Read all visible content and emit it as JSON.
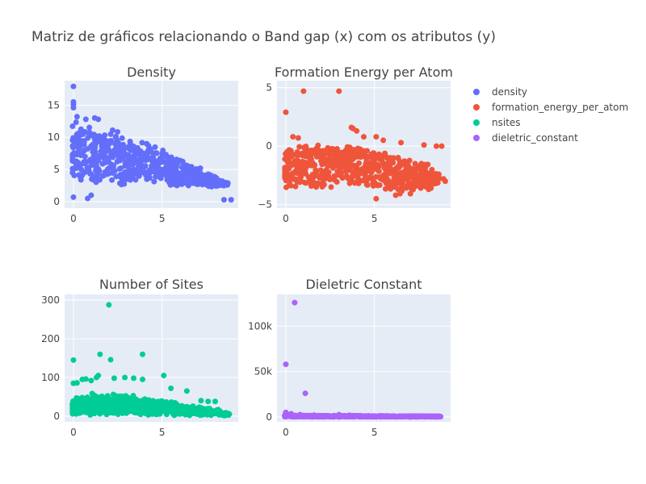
{
  "figure": {
    "title": "Matriz de gráficos relacionando o Band gap (x) com os atributos (y)",
    "plot_bg": "#e5ecf6",
    "grid_color": "#ffffff"
  },
  "legend": {
    "position": "top-right",
    "items": [
      {
        "name": "density",
        "color": "#636efa"
      },
      {
        "name": "formation_energy_per_atom",
        "color": "#ef553b"
      },
      {
        "name": "nsites",
        "color": "#00cc96"
      },
      {
        "name": "dieletric_constant",
        "color": "#ab63fa"
      }
    ]
  },
  "chart_data": [
    {
      "type": "scatter",
      "title": "Density",
      "series": [
        {
          "name": "density",
          "color": "#636efa"
        }
      ],
      "xlim": [
        -0.5,
        9.3
      ],
      "ylim": [
        -1,
        18.8
      ],
      "xticks": [
        {
          "v": 0,
          "label": "0"
        },
        {
          "v": 5,
          "label": "5"
        }
      ],
      "yticks": [
        {
          "v": 0,
          "label": "0"
        },
        {
          "v": 5,
          "label": "5"
        },
        {
          "v": 10,
          "label": "10"
        },
        {
          "v": 15,
          "label": "15"
        }
      ],
      "cloud": [
        [
          0,
          2.5,
          13.5
        ],
        [
          0.5,
          2.5,
          13
        ],
        [
          1,
          2.5,
          12.5
        ],
        [
          1.5,
          2.5,
          12
        ],
        [
          2,
          2.5,
          11.5
        ],
        [
          2.5,
          2.5,
          11
        ],
        [
          3,
          2.5,
          10.5
        ],
        [
          3.5,
          2.5,
          10
        ],
        [
          4,
          2.5,
          9.5
        ],
        [
          4.5,
          2.5,
          9
        ],
        [
          5,
          2.3,
          8.5
        ],
        [
          5.5,
          2.3,
          7.5
        ],
        [
          6,
          2.3,
          7
        ],
        [
          6.5,
          2.3,
          6
        ],
        [
          7,
          2.3,
          5.5
        ],
        [
          7.5,
          2.3,
          4.5
        ],
        [
          8,
          2.3,
          4
        ],
        [
          8.5,
          2.5,
          3
        ]
      ],
      "points": [
        [
          0,
          17.9
        ],
        [
          0,
          15.5
        ],
        [
          0,
          15.1
        ],
        [
          0,
          14.6
        ],
        [
          0,
          0.7
        ],
        [
          0.8,
          0.5
        ],
        [
          1,
          1
        ],
        [
          8.5,
          0.3
        ],
        [
          8.9,
          0.3
        ],
        [
          8.5,
          2.5
        ],
        [
          8.4,
          3.2
        ],
        [
          0.2,
          13.2
        ],
        [
          0.7,
          12.8
        ],
        [
          1.2,
          13
        ],
        [
          1.4,
          12.8
        ]
      ]
    },
    {
      "type": "scatter",
      "title": "Formation Energy per Atom",
      "series": [
        {
          "name": "formation_energy_per_atom",
          "color": "#ef553b"
        }
      ],
      "xlim": [
        -0.5,
        9.3
      ],
      "ylim": [
        -5.3,
        5.6
      ],
      "xticks": [
        {
          "v": 0,
          "label": "0"
        },
        {
          "v": 5,
          "label": "5"
        }
      ],
      "yticks": [
        {
          "v": -5,
          "label": "−5"
        },
        {
          "v": 0,
          "label": "0"
        },
        {
          "v": 5,
          "label": "5"
        }
      ],
      "cloud": [
        [
          0,
          -3.8,
          0.1
        ],
        [
          0.5,
          -3.8,
          0.2
        ],
        [
          1,
          -3.7,
          0.2
        ],
        [
          1.5,
          -3.7,
          0.2
        ],
        [
          2,
          -3.7,
          0.2
        ],
        [
          2.5,
          -3.6,
          0.2
        ],
        [
          3,
          -3.6,
          0.2
        ],
        [
          3.5,
          -3.6,
          0.1
        ],
        [
          4,
          -3.6,
          0.1
        ],
        [
          4.5,
          -3.6,
          0
        ],
        [
          5,
          -3.8,
          -0.2
        ],
        [
          5.5,
          -3.9,
          -0.3
        ],
        [
          6,
          -4.2,
          -0.5
        ],
        [
          6.5,
          -4.3,
          -0.7
        ],
        [
          7,
          -4.3,
          -0.9
        ],
        [
          7.5,
          -4,
          -1.2
        ],
        [
          8,
          -3.8,
          -1.5
        ],
        [
          8.4,
          -3.4,
          -2.2
        ]
      ],
      "points": [
        [
          0,
          2.9
        ],
        [
          1,
          4.7
        ],
        [
          3,
          4.7
        ],
        [
          0.4,
          0.8
        ],
        [
          0.7,
          0.7
        ],
        [
          3.7,
          1.6
        ],
        [
          4,
          1.3
        ],
        [
          3.8,
          1.5
        ],
        [
          4.4,
          0.8
        ],
        [
          5.1,
          0.8
        ],
        [
          5.5,
          0.5
        ],
        [
          6.5,
          0.3
        ],
        [
          7.8,
          0.1
        ],
        [
          8.5,
          0
        ],
        [
          8.8,
          0
        ],
        [
          8.9,
          -2.8
        ],
        [
          9,
          -3
        ],
        [
          6.2,
          -4.2
        ],
        [
          5.1,
          -4.5
        ]
      ]
    },
    {
      "type": "scatter",
      "title": "Number of Sites",
      "series": [
        {
          "name": "nsites",
          "color": "#00cc96"
        }
      ],
      "xlim": [
        -0.5,
        9.3
      ],
      "ylim": [
        -15,
        315
      ],
      "xticks": [
        {
          "v": 0,
          "label": "0"
        },
        {
          "v": 5,
          "label": "5"
        }
      ],
      "yticks": [
        {
          "v": 0,
          "label": "0"
        },
        {
          "v": 100,
          "label": "100"
        },
        {
          "v": 200,
          "label": "200"
        },
        {
          "v": 300,
          "label": "300"
        }
      ],
      "cloud": [
        [
          0,
          1,
          50
        ],
        [
          0.5,
          1,
          55
        ],
        [
          1,
          1,
          60
        ],
        [
          1.5,
          1,
          62
        ],
        [
          2,
          1,
          62
        ],
        [
          2.5,
          1,
          60
        ],
        [
          3,
          1,
          58
        ],
        [
          3.5,
          1,
          55
        ],
        [
          4,
          1,
          52
        ],
        [
          4.5,
          1,
          48
        ],
        [
          5,
          1,
          42
        ],
        [
          5.5,
          1,
          38
        ],
        [
          6,
          1,
          34
        ],
        [
          6.5,
          1,
          30
        ],
        [
          7,
          1,
          26
        ],
        [
          7.5,
          1,
          22
        ],
        [
          8,
          1,
          18
        ],
        [
          8.5,
          1,
          10
        ]
      ],
      "points": [
        [
          2,
          288
        ],
        [
          0,
          145
        ],
        [
          1.5,
          160
        ],
        [
          2.1,
          146
        ],
        [
          3.9,
          160
        ],
        [
          0,
          85
        ],
        [
          0.2,
          86
        ],
        [
          0.5,
          95
        ],
        [
          0.7,
          96
        ],
        [
          1,
          92
        ],
        [
          1.3,
          100
        ],
        [
          1.4,
          105
        ],
        [
          2.3,
          98
        ],
        [
          2.9,
          100
        ],
        [
          3.4,
          98
        ],
        [
          3.9,
          95
        ],
        [
          5.1,
          105
        ],
        [
          5.5,
          72
        ],
        [
          6.4,
          65
        ],
        [
          7.2,
          40
        ],
        [
          7.6,
          38
        ],
        [
          8,
          38
        ],
        [
          8.6,
          5
        ],
        [
          8.8,
          5
        ]
      ]
    },
    {
      "type": "scatter",
      "title": "Dieletric Constant",
      "series": [
        {
          "name": "dieletric_constant",
          "color": "#ab63fa"
        }
      ],
      "xlim": [
        -0.5,
        9.3
      ],
      "ylim": [
        -5500,
        135000
      ],
      "xticks": [
        {
          "v": 0,
          "label": "0"
        },
        {
          "v": 5,
          "label": "5"
        }
      ],
      "yticks": [
        {
          "v": 0,
          "label": "0"
        },
        {
          "v": 50000,
          "label": "50k"
        },
        {
          "v": 100000,
          "label": "100k"
        }
      ],
      "cloud": [
        [
          0,
          0,
          2000
        ],
        [
          0.5,
          0,
          1800
        ],
        [
          1,
          0,
          1500
        ],
        [
          1.5,
          0,
          1500
        ],
        [
          2,
          0,
          1500
        ],
        [
          2.5,
          0,
          1500
        ],
        [
          3,
          0,
          1500
        ],
        [
          3.5,
          0,
          1500
        ],
        [
          4,
          0,
          1500
        ],
        [
          4.5,
          0,
          1200
        ],
        [
          5,
          0,
          1200
        ],
        [
          5.5,
          0,
          1200
        ],
        [
          6,
          0,
          1000
        ],
        [
          6.5,
          0,
          1000
        ],
        [
          7,
          0,
          1000
        ],
        [
          7.5,
          0,
          1000
        ],
        [
          8,
          0,
          1000
        ],
        [
          8.5,
          0,
          800
        ]
      ],
      "points": [
        [
          0.5,
          126000
        ],
        [
          0,
          58000
        ],
        [
          1.1,
          26000
        ],
        [
          0,
          5000
        ],
        [
          0,
          4000
        ],
        [
          0.3,
          3500
        ],
        [
          0.8,
          2500
        ],
        [
          1.6,
          2000
        ],
        [
          3,
          2500
        ],
        [
          3.6,
          1800
        ],
        [
          8.7,
          500
        ]
      ]
    }
  ]
}
